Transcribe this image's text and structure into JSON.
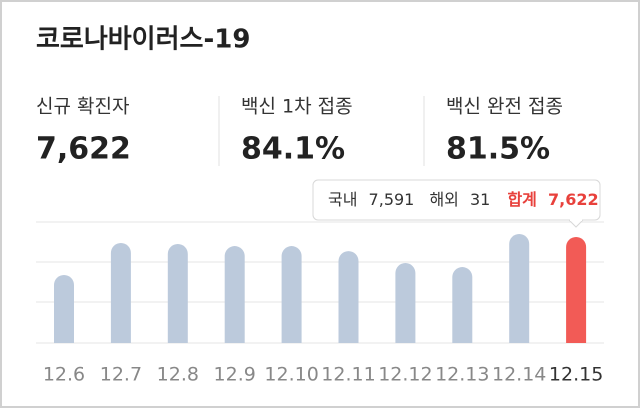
{
  "title": "코로나바이러스-19",
  "stats": [
    {
      "label": "신규 확진자",
      "value": "7,622"
    },
    {
      "label": "백신 1차 접종",
      "value": "84.1%"
    },
    {
      "label": "백신 완전 접종",
      "value": "81.5%"
    }
  ],
  "tooltip": {
    "domestic_label": "국내",
    "domestic": "7,591",
    "overseas_label": "해외",
    "overseas": "31",
    "total_label": "합계",
    "total": "7,622"
  },
  "chart_data": {
    "type": "bar",
    "categories": [
      "12.6",
      "12.7",
      "12.8",
      "12.9",
      "12.10",
      "12.11",
      "12.12",
      "12.13",
      "12.14",
      "12.15"
    ],
    "values": [
      4890,
      7190,
      7120,
      6970,
      6970,
      6610,
      5750,
      5460,
      7840,
      7622
    ],
    "colors": [
      "#bccadc",
      "#bccadc",
      "#bccadc",
      "#bccadc",
      "#bccadc",
      "#bccadc",
      "#bccadc",
      "#bccadc",
      "#bccadc",
      "#f25b56"
    ],
    "ylim": [
      0,
      8700
    ]
  }
}
